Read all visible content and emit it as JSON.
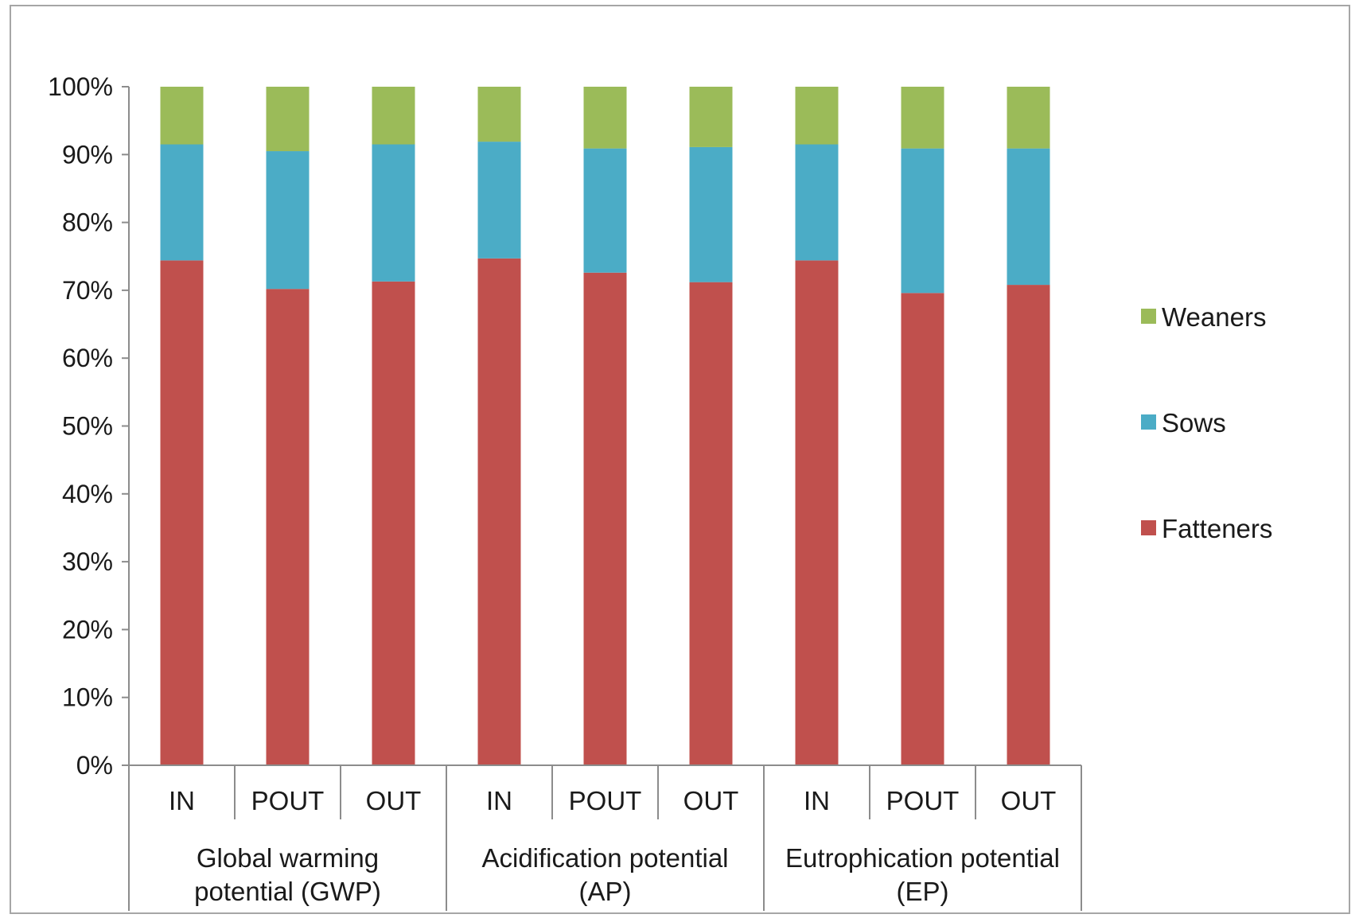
{
  "chart_data": {
    "type": "bar",
    "stacked": true,
    "title": "",
    "xlabel": "",
    "ylabel": "",
    "ylim": [
      0,
      100
    ],
    "y_ticks": [
      "0%",
      "10%",
      "20%",
      "30%",
      "40%",
      "50%",
      "60%",
      "70%",
      "80%",
      "90%",
      "100%"
    ],
    "categories": [
      "IN",
      "POUT",
      "OUT",
      "IN",
      "POUT",
      "OUT",
      "IN",
      "POUT",
      "OUT"
    ],
    "groups": [
      {
        "label_lines": [
          "Global warming",
          "potential (GWP)"
        ],
        "span": 3
      },
      {
        "label_lines": [
          "Acidification potential",
          "(AP)"
        ],
        "span": 3
      },
      {
        "label_lines": [
          "Eutrophication potential",
          "(EP)"
        ],
        "span": 3
      }
    ],
    "series": [
      {
        "name": "Fatteners",
        "color": "#c0504d",
        "values": [
          74.4,
          70.2,
          71.3,
          74.7,
          72.6,
          71.2,
          74.4,
          69.6,
          70.8
        ]
      },
      {
        "name": "Sows",
        "color": "#4bacc6",
        "values": [
          17.1,
          20.3,
          20.2,
          17.2,
          18.3,
          19.9,
          17.1,
          21.3,
          20.1
        ]
      },
      {
        "name": "Weaners",
        "color": "#9bbb59",
        "values": [
          8.5,
          9.5,
          8.5,
          8.1,
          9.1,
          8.9,
          8.5,
          9.1,
          9.1
        ]
      }
    ],
    "legend": {
      "position": "right",
      "order": [
        "Weaners",
        "Sows",
        "Fatteners"
      ]
    },
    "grid": false
  }
}
